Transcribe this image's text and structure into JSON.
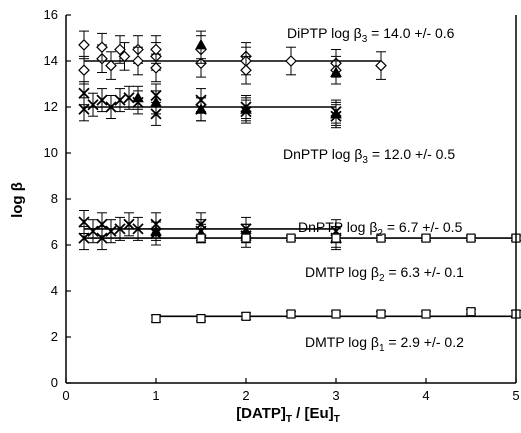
{
  "chart_data": {
    "type": "scatter",
    "title": "",
    "xlabel_main": "[DATP]",
    "xlabel_sub1": "T",
    "xlabel_mid": " / [Eu]",
    "xlabel_sub2": "T",
    "ylabel_main": "log β",
    "xlim": [
      0,
      5
    ],
    "ylim": [
      0,
      16
    ],
    "x_ticks": [
      "0",
      "1",
      "2",
      "3",
      "4",
      "5"
    ],
    "y_ticks": [
      "0",
      "2",
      "4",
      "6",
      "8",
      "10",
      "12",
      "14",
      "16"
    ],
    "x_tick_values": [
      0,
      1,
      2,
      3,
      4,
      5
    ],
    "y_tick_values": [
      0,
      2,
      4,
      6,
      8,
      10,
      12,
      14,
      16
    ],
    "grid": false,
    "annotations": [
      {
        "pre": "DiPTP log ",
        "sym": "β",
        "sub": "3",
        "post": " = 14.0 +/- 0.6"
      },
      {
        "pre": "DnPTP log ",
        "sym": "β",
        "sub": "3",
        "post": " = 12.0 +/- 0.5"
      },
      {
        "pre": "DnPTP log ",
        "sym": "β",
        "sub": "2",
        "post": " = 6.7 +/- 0.5"
      },
      {
        "pre": "DMTP log ",
        "sym": "β",
        "sub": "2",
        "post": " = 6.3 +/- 0.1"
      },
      {
        "pre": "DMTP log ",
        "sym": "β",
        "sub": "1",
        "post": " = 2.9 +/- 0.2"
      }
    ],
    "series": [
      {
        "marker": "diamond",
        "color": "#000000",
        "fit": 14.0,
        "fit_range": [
          0.2,
          3.5
        ],
        "points": [
          [
            0.2,
            14.7,
            0.6
          ],
          [
            0.2,
            13.6,
            0.6
          ],
          [
            0.4,
            14.1,
            0.6
          ],
          [
            0.4,
            14.6,
            0.6
          ],
          [
            0.5,
            13.8,
            0.6
          ],
          [
            0.6,
            14.5,
            0.6
          ],
          [
            0.65,
            14.2,
            0.6
          ],
          [
            0.8,
            14.5,
            0.6
          ],
          [
            0.8,
            14.0,
            0.6
          ],
          [
            1.0,
            14.2,
            0.6
          ],
          [
            1.0,
            13.7,
            0.6
          ],
          [
            1.0,
            14.5,
            0.6
          ],
          [
            1.5,
            13.9,
            0.6
          ],
          [
            1.5,
            14.5,
            0.6
          ],
          [
            2.0,
            14.2,
            0.6
          ],
          [
            2.0,
            14.0,
            0.6
          ],
          [
            2.0,
            13.6,
            0.6
          ],
          [
            2.5,
            14.0,
            0.6
          ],
          [
            3.0,
            13.9,
            0.6
          ],
          [
            3.0,
            13.6,
            0.6
          ],
          [
            3.5,
            13.8,
            0.6
          ]
        ]
      },
      {
        "marker": "filled-triangle",
        "color": "#000000",
        "fit": null,
        "fit_range": null,
        "points": [
          [
            1.5,
            14.7,
            0.6
          ],
          [
            3.0,
            13.5,
            0.5
          ]
        ]
      },
      {
        "marker": "x",
        "color": "#000000",
        "fit": 12.0,
        "fit_range": [
          0.2,
          3.0
        ],
        "points": [
          [
            0.2,
            12.6,
            0.5
          ],
          [
            0.2,
            11.9,
            0.5
          ],
          [
            0.3,
            12.1,
            0.5
          ],
          [
            0.4,
            12.3,
            0.5
          ],
          [
            0.5,
            12.0,
            0.5
          ],
          [
            0.6,
            12.3,
            0.5
          ],
          [
            0.7,
            12.4,
            0.5
          ],
          [
            0.8,
            12.2,
            0.5
          ],
          [
            1.0,
            12.5,
            0.5
          ],
          [
            1.0,
            11.7,
            0.5
          ],
          [
            1.5,
            12.3,
            0.5
          ],
          [
            1.5,
            11.9,
            0.5
          ],
          [
            2.0,
            12.0,
            0.5
          ],
          [
            2.0,
            11.8,
            0.5
          ],
          [
            3.0,
            11.8,
            0.5
          ],
          [
            3.0,
            11.6,
            0.5
          ]
        ]
      },
      {
        "marker": "filled-triangle",
        "color": "#000000",
        "fit": null,
        "fit_range": null,
        "points": [
          [
            0.8,
            12.4,
            0.5
          ],
          [
            1.0,
            12.2,
            0.5
          ],
          [
            1.5,
            11.9,
            0.5
          ],
          [
            2.0,
            11.9,
            0.5
          ],
          [
            3.0,
            11.7,
            0.5
          ]
        ]
      },
      {
        "marker": "x",
        "color": "#000000",
        "fit": 6.7,
        "fit_range": [
          0.2,
          3.0
        ],
        "points": [
          [
            0.2,
            7.0,
            0.5
          ],
          [
            0.2,
            6.3,
            0.5
          ],
          [
            0.3,
            6.6,
            0.5
          ],
          [
            0.4,
            6.9,
            0.5
          ],
          [
            0.4,
            6.3,
            0.5
          ],
          [
            0.5,
            6.6,
            0.5
          ],
          [
            0.6,
            6.7,
            0.5
          ],
          [
            0.7,
            6.9,
            0.5
          ],
          [
            0.8,
            6.7,
            0.5
          ],
          [
            1.0,
            6.5,
            0.5
          ],
          [
            1.0,
            6.9,
            0.5
          ],
          [
            1.5,
            6.6,
            0.5
          ],
          [
            1.5,
            6.9,
            0.5
          ],
          [
            2.0,
            6.4,
            0.5
          ],
          [
            2.0,
            6.7,
            0.5
          ],
          [
            3.0,
            6.3,
            0.5
          ],
          [
            3.0,
            6.6,
            0.5
          ]
        ]
      },
      {
        "marker": "filled-triangle",
        "color": "#000000",
        "fit": null,
        "fit_range": null,
        "points": [
          [
            1.0,
            6.6,
            0.4
          ],
          [
            1.5,
            6.5,
            0.4
          ],
          [
            2.0,
            6.5,
            0.4
          ],
          [
            3.0,
            6.3,
            0.4
          ]
        ]
      },
      {
        "marker": "square",
        "color": "#000000",
        "fit": 6.3,
        "fit_range": [
          0.2,
          5.0
        ],
        "points": [
          [
            1.5,
            6.3,
            0.1
          ],
          [
            2.0,
            6.3,
            0.1
          ],
          [
            2.5,
            6.3,
            0.1
          ],
          [
            3.0,
            6.3,
            0.1
          ],
          [
            3.5,
            6.3,
            0.1
          ],
          [
            4.0,
            6.3,
            0.1
          ],
          [
            4.5,
            6.3,
            0.1
          ],
          [
            5.0,
            6.3,
            0.1
          ]
        ]
      },
      {
        "marker": "square",
        "color": "#000000",
        "fit": 2.9,
        "fit_range": [
          1.0,
          5.0
        ],
        "points": [
          [
            1.0,
            2.8,
            0.15
          ],
          [
            1.5,
            2.8,
            0.1
          ],
          [
            2.0,
            2.9,
            0.15
          ],
          [
            2.5,
            3.0,
            0.1
          ],
          [
            3.0,
            3.0,
            0.1
          ],
          [
            3.5,
            3.0,
            0.1
          ],
          [
            4.0,
            3.0,
            0.1
          ],
          [
            4.5,
            3.1,
            0.1
          ],
          [
            5.0,
            3.0,
            0.15
          ]
        ]
      }
    ]
  }
}
